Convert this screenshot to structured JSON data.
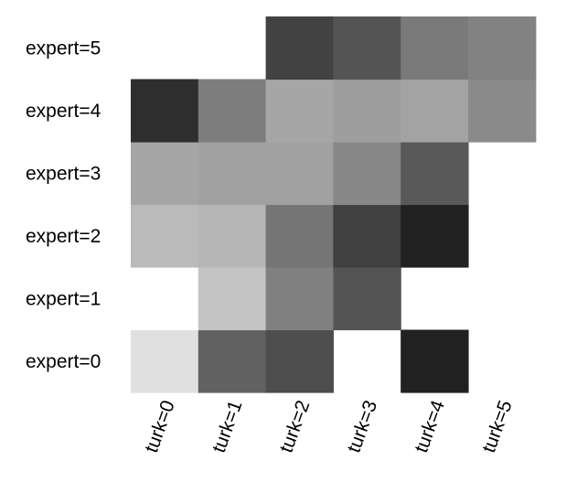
{
  "chart_data": {
    "type": "heatmap",
    "x_categories": [
      "turk=0",
      "turk=1",
      "turk=2",
      "turk=3",
      "turk=4",
      "turk=5"
    ],
    "y_categories": [
      "expert=0",
      "expert=1",
      "expert=2",
      "expert=3",
      "expert=4",
      "expert=5"
    ],
    "cell_shades": [
      [
        0.12,
        0.62,
        0.7,
        null,
        0.87,
        null
      ],
      [
        0.0,
        0.23,
        0.5,
        0.67,
        null,
        null
      ],
      [
        0.27,
        0.29,
        0.54,
        0.75,
        0.87,
        null
      ],
      [
        0.35,
        0.37,
        0.37,
        0.47,
        0.65,
        null
      ],
      [
        0.82,
        0.51,
        0.35,
        0.38,
        0.36,
        0.46
      ],
      [
        null,
        null,
        0.74,
        0.67,
        0.52,
        0.49
      ]
    ],
    "color_scale": "grayscale, black = highest, white = lowest / empty",
    "colors": {
      "dark": "#000000",
      "light": "#ffffff"
    },
    "grid": false,
    "legend": "none"
  }
}
